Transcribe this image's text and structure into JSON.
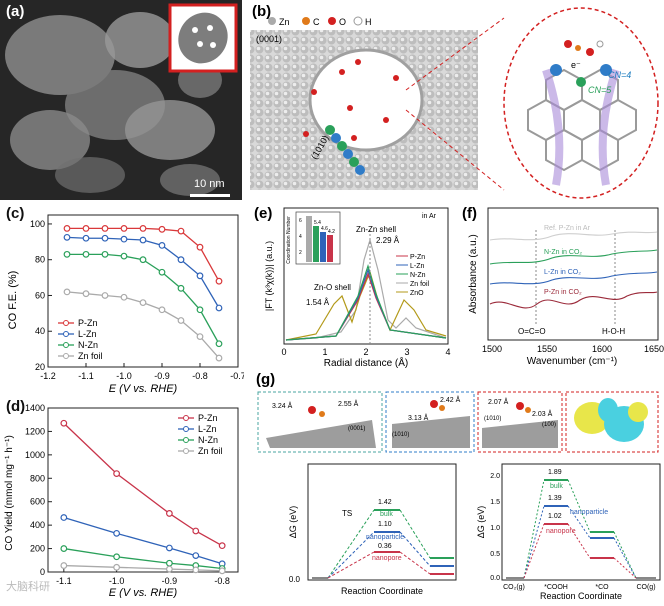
{
  "panel_a": {
    "label": "(a)",
    "scalebar": "10 nm"
  },
  "panel_b": {
    "label": "(b)",
    "legend": [
      "Zn",
      "C",
      "O",
      "H"
    ],
    "facet": "(0001)",
    "side_facet": "(1010)",
    "electron": "e⁻",
    "cn4": "CN=4",
    "cn5": "CN=5"
  },
  "panel_c": {
    "label": "(c)",
    "ylabel": "CO F.E. (%)",
    "xlabel": "E (V vs. RHE)",
    "xticks": [
      "-1.2",
      "-1.1",
      "-1.0",
      "-0.9",
      "-0.8",
      "-0.7"
    ],
    "yticks": [
      "20",
      "40",
      "60",
      "80",
      "100"
    ],
    "legend": [
      "P-Zn",
      "L-Zn",
      "N-Zn",
      "Zn foil"
    ]
  },
  "panel_d": {
    "label": "(d)",
    "ylabel": "CO Yield (mmol mg⁻¹ h⁻¹)",
    "xlabel": "E (V vs. RHE)",
    "xticks": [
      "-1.1",
      "-1.0",
      "-0.9",
      "-0.8"
    ],
    "yticks": [
      "0",
      "200",
      "400",
      "600",
      "800",
      "1000",
      "1200",
      "1400"
    ],
    "legend": [
      "P-Zn",
      "L-Zn",
      "N-Zn",
      "Zn foil"
    ]
  },
  "panel_e": {
    "label": "(e)",
    "ylabel": "|FT (k³χ(k))| (a.u.)",
    "xlabel": "Radial distance (Å)",
    "xticks": [
      "0",
      "1",
      "2",
      "3",
      "4"
    ],
    "cond": "in Ar",
    "ann_znzn": "Zn-Zn shell",
    "ann_229": "2.29 Å",
    "ann_zno": "Zn-O shell",
    "ann_154": "1.54 Å",
    "legend": [
      "P-Zn",
      "L-Zn",
      "N-Zn",
      "Zn foil",
      "ZnO"
    ],
    "inset_ylabel": "Coordination Number",
    "inset_yticks": [
      "6",
      "4",
      "2"
    ],
    "inset_values": [
      "5.4",
      "4.6",
      "4.2"
    ]
  },
  "panel_f": {
    "label": "(f)",
    "ylabel": "Absorbance (a.u.)",
    "xlabel": "Wavenumber (cm⁻¹)",
    "xticks": [
      "1500",
      "1550",
      "1600",
      "1650"
    ],
    "traces": [
      "Ref. P-Zn in Ar",
      "N-Zn in CO₂",
      "L-Zn in CO₂",
      "P-Zn in CO₂"
    ],
    "ann_oco": "O=C=O",
    "ann_hoh": "H-O-H"
  },
  "panel_g": {
    "label": "(g)",
    "structs": {
      "s1_a": "3.24 Å",
      "s1_b": "2.55 Å",
      "s1_facet": "(0001)",
      "s2_a": "2.42 Å",
      "s2_b": "3.13 Å",
      "s2_facet": "(1010)",
      "s3_a": "2.07 Å",
      "s3_b": "2.03 Å",
      "s3_f1": "(1010)",
      "s3_f2": "(100)"
    },
    "left": {
      "ylabel": "ΔG (eV)",
      "xlabel": "Reaction Coordinate",
      "ts": "TS",
      "bulk_val": "1.42",
      "bulk_lbl": "bulk",
      "np_val": "1.10",
      "np_lbl": "nanoparticle",
      "pore_val": "0.36",
      "pore_lbl": "nanopore",
      "zero": "0.0"
    },
    "right": {
      "ylabel": "ΔG (eV)",
      "xlabel": "Reaction Coordinate",
      "bulk_val": "1.89",
      "bulk_lbl": "bulk",
      "np_val": "1.39",
      "np_lbl": "nanoparticle",
      "pore_val": "1.02",
      "pore_lbl": "nanopore",
      "yticks": [
        "2.0",
        "1.5",
        "1.0",
        "0.5",
        "0.0"
      ],
      "xcats": [
        "CO₂(g)",
        "*COOH",
        "*CO",
        "CO(g)"
      ]
    }
  },
  "watermark": "大脑科研",
  "chart_data": [
    {
      "type": "line",
      "title": "",
      "xlabel": "E (V vs. RHE)",
      "ylabel": "CO F.E. (%)",
      "xlim": [
        -1.2,
        -0.7
      ],
      "ylim": [
        20,
        105
      ],
      "x": [
        -1.15,
        -1.1,
        -1.05,
        -1.0,
        -0.95,
        -0.9,
        -0.85,
        -0.8,
        -0.75
      ],
      "series": [
        {
          "name": "P-Zn",
          "color": "#d9383a",
          "values": [
            97.5,
            97.5,
            97.5,
            97.5,
            97.5,
            97.0,
            96.0,
            87.0,
            68.0
          ]
        },
        {
          "name": "L-Zn",
          "color": "#2f63b8",
          "values": [
            92.5,
            92.0,
            92.0,
            91.5,
            91.0,
            88.0,
            80.0,
            71.0,
            53.0
          ]
        },
        {
          "name": "N-Zn",
          "color": "#2aa05a",
          "values": [
            83.0,
            83.0,
            83.0,
            82.0,
            80.0,
            73.0,
            64.0,
            52.0,
            33.0
          ]
        },
        {
          "name": "Zn foil",
          "color": "#aaaaaa",
          "values": [
            62.0,
            61.0,
            60.0,
            59.0,
            56.0,
            52.0,
            46.0,
            37.0,
            25.0
          ]
        }
      ]
    },
    {
      "type": "line",
      "title": "",
      "xlabel": "E (V vs. RHE)",
      "ylabel": "CO Yield (mmol mg⁻¹ h⁻¹)",
      "xlim": [
        -1.13,
        -0.77
      ],
      "ylim": [
        0,
        1400
      ],
      "x": [
        -1.1,
        -1.0,
        -0.9,
        -0.85,
        -0.8
      ],
      "series": [
        {
          "name": "P-Zn",
          "color": "#c8344a",
          "values": [
            1270,
            840,
            500,
            350,
            225
          ]
        },
        {
          "name": "L-Zn",
          "color": "#2f63b8",
          "values": [
            465,
            330,
            205,
            140,
            70
          ]
        },
        {
          "name": "N-Zn",
          "color": "#2aa05a",
          "values": [
            200,
            130,
            75,
            55,
            30
          ]
        },
        {
          "name": "Zn foil",
          "color": "#aaaaaa",
          "values": [
            55,
            40,
            25,
            18,
            10
          ]
        }
      ]
    }
  ]
}
